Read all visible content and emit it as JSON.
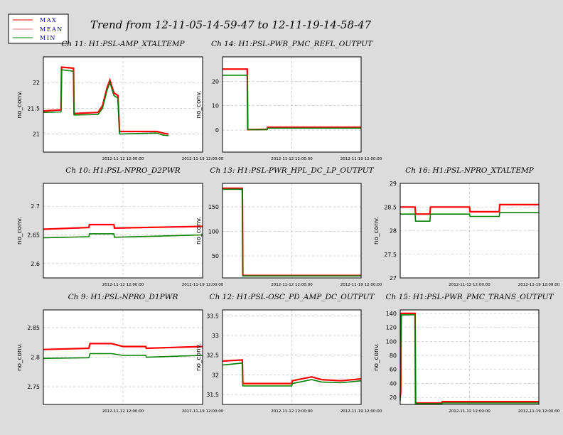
{
  "title": "Trend from 12-11-05-14-59-47 to 12-11-19-14-58-47",
  "legend": [
    {
      "label": "MAX",
      "color": "#e00000"
    },
    {
      "label": "MEAN",
      "color": "#e07070"
    },
    {
      "label": "MIN",
      "color": "#008000"
    }
  ],
  "colors": {
    "max": "#ff0000",
    "min": "#008000",
    "background": "#dcdcdc",
    "plot": "#ffffff",
    "grid": "#b4b4b4"
  },
  "chart_data": [
    {
      "type": "line",
      "title": "Ch 11: H1:PSL-AMP_XTALTEMP",
      "ylabel": "no_conv.",
      "ylim": [
        20.65,
        22.5
      ],
      "yticks": [
        21,
        21.5,
        22
      ],
      "xlim": [
        0,
        14
      ],
      "xticks": [
        "2012-11-12 12:00:00",
        "2012-11-19 12:00:00"
      ],
      "series": [
        {
          "name": "MAX",
          "points": [
            [
              0,
              21.45
            ],
            [
              1.55,
              21.47
            ],
            [
              1.6,
              22.3
            ],
            [
              2.65,
              22.28
            ],
            [
              2.7,
              21.4
            ],
            [
              4.8,
              21.42
            ],
            [
              5.2,
              21.55
            ],
            [
              5.6,
              21.9
            ],
            [
              5.85,
              22.05
            ],
            [
              6.2,
              21.8
            ],
            [
              6.55,
              21.75
            ],
            [
              6.7,
              21.05
            ],
            [
              10,
              21.05
            ],
            [
              10.5,
              21.02
            ],
            [
              11,
              21.0
            ]
          ]
        },
        {
          "name": "MIN",
          "points": [
            [
              0,
              21.42
            ],
            [
              1.55,
              21.43
            ],
            [
              1.6,
              22.25
            ],
            [
              2.65,
              22.22
            ],
            [
              2.7,
              21.37
            ],
            [
              4.8,
              21.38
            ],
            [
              5.2,
              21.5
            ],
            [
              5.6,
              21.85
            ],
            [
              5.85,
              22.0
            ],
            [
              6.2,
              21.75
            ],
            [
              6.55,
              21.7
            ],
            [
              6.7,
              21.0
            ],
            [
              10,
              21.02
            ],
            [
              10.5,
              20.98
            ],
            [
              11,
              20.97
            ]
          ]
        }
      ]
    },
    {
      "type": "line",
      "title": "Ch 14: H1:PSL-PWR_PMC_REFL_OUTPUT",
      "ylabel": "no_conv.",
      "ylim": [
        -9,
        30
      ],
      "yticks": [
        0,
        10,
        20
      ],
      "xlim": [
        0,
        14
      ],
      "xticks": [
        "2012-11-12 12:00:00",
        "2012-11-19 12:00:00"
      ],
      "series": [
        {
          "name": "MAX",
          "points": [
            [
              0,
              25
            ],
            [
              2.5,
              25
            ],
            [
              2.55,
              0.2
            ],
            [
              4.5,
              0.3
            ],
            [
              4.55,
              1.2
            ],
            [
              10,
              1.2
            ],
            [
              14,
              1.2
            ]
          ]
        },
        {
          "name": "MIN",
          "points": [
            [
              0,
              22.5
            ],
            [
              2.5,
              22.5
            ],
            [
              2.55,
              0.2
            ],
            [
              4.5,
              0.2
            ],
            [
              4.55,
              0.8
            ],
            [
              10,
              0.8
            ],
            [
              14,
              0.8
            ]
          ]
        }
      ]
    },
    {
      "type": "line",
      "title": "Ch 16: H1:PSL-NPRO_XTALTEMP",
      "ylabel": "no_conv.",
      "ylim": [
        27,
        29
      ],
      "yticks": [
        27,
        27.5,
        28,
        28.5,
        29
      ],
      "xlim": [
        0,
        14
      ],
      "xticks": [
        "2012-11-12 12:00:00",
        "2012-11-19 12:00:00"
      ],
      "series": [
        {
          "name": "MAX",
          "points": [
            [
              0,
              28.5
            ],
            [
              1.5,
              28.5
            ],
            [
              1.55,
              28.35
            ],
            [
              3,
              28.35
            ],
            [
              3.05,
              28.5
            ],
            [
              7,
              28.5
            ],
            [
              7.05,
              28.4
            ],
            [
              10,
              28.4
            ],
            [
              10.05,
              28.55
            ],
            [
              14,
              28.55
            ]
          ]
        },
        {
          "name": "MIN",
          "points": [
            [
              0,
              28.35
            ],
            [
              1.5,
              28.35
            ],
            [
              1.55,
              28.2
            ],
            [
              3,
              28.2
            ],
            [
              3.05,
              28.35
            ],
            [
              7,
              28.35
            ],
            [
              7.05,
              28.3
            ],
            [
              10,
              28.3
            ],
            [
              10.05,
              28.38
            ],
            [
              14,
              28.38
            ]
          ]
        }
      ]
    },
    {
      "type": "line",
      "title": "Ch 10: H1:PSL-NPRO_D2PWR",
      "ylabel": "no_conv.",
      "ylim": [
        2.575,
        2.74
      ],
      "yticks": [
        2.6,
        2.65,
        2.7
      ],
      "xlim": [
        0,
        14
      ],
      "xticks": [
        "2012-11-12 12:00:00",
        "2012-11-19 12:00:00"
      ],
      "series": [
        {
          "name": "MAX",
          "points": [
            [
              0,
              2.66
            ],
            [
              4,
              2.663
            ],
            [
              4.05,
              2.668
            ],
            [
              6.2,
              2.668
            ],
            [
              6.25,
              2.662
            ],
            [
              14,
              2.665
            ]
          ]
        },
        {
          "name": "MIN",
          "points": [
            [
              0,
              2.645
            ],
            [
              4,
              2.647
            ],
            [
              4.05,
              2.652
            ],
            [
              6.2,
              2.652
            ],
            [
              6.25,
              2.646
            ],
            [
              14,
              2.65
            ]
          ]
        }
      ]
    },
    {
      "type": "line",
      "title": "Ch 13: H1:PSL-PWR_HPL_DC_LP_OUTPUT",
      "ylabel": "no_conv.",
      "ylim": [
        5,
        198
      ],
      "yticks": [
        50,
        100,
        150
      ],
      "xlim": [
        0,
        14
      ],
      "xticks": [
        "2012-11-12 12:00:00",
        "2012-11-19 12:00:00"
      ],
      "series": [
        {
          "name": "MAX",
          "points": [
            [
              0,
              188
            ],
            [
              2,
              188
            ],
            [
              2.05,
              10
            ],
            [
              14,
              10
            ]
          ]
        },
        {
          "name": "MIN",
          "points": [
            [
              0,
              186
            ],
            [
              2,
              186
            ],
            [
              2.05,
              9
            ],
            [
              14,
              9
            ]
          ]
        }
      ]
    },
    {
      "type": "line",
      "title": "Ch 9: H1:PSL-NPRO_D1PWR",
      "ylabel": "no_conv.",
      "ylim": [
        2.72,
        2.88
      ],
      "yticks": [
        2.75,
        2.8,
        2.85
      ],
      "xlim": [
        0,
        14
      ],
      "xticks": [
        "2012-11-12 12:00:00",
        "2012-11-19 12:00:00"
      ],
      "series": [
        {
          "name": "MAX",
          "points": [
            [
              0,
              2.813
            ],
            [
              4,
              2.815
            ],
            [
              4.1,
              2.823
            ],
            [
              6,
              2.823
            ],
            [
              7,
              2.818
            ],
            [
              9,
              2.818
            ],
            [
              9.05,
              2.815
            ],
            [
              14,
              2.818
            ]
          ]
        },
        {
          "name": "MIN",
          "points": [
            [
              0,
              2.798
            ],
            [
              4,
              2.799
            ],
            [
              4.1,
              2.806
            ],
            [
              6,
              2.806
            ],
            [
              7,
              2.803
            ],
            [
              9,
              2.803
            ],
            [
              9.05,
              2.8
            ],
            [
              14,
              2.803
            ]
          ]
        }
      ]
    },
    {
      "type": "line",
      "title": "Ch 12: H1:PSL-OSC_PD_AMP_DC_OUTPUT",
      "ylabel": "no_conv.",
      "ylim": [
        31.25,
        33.65
      ],
      "yticks": [
        31.5,
        32,
        32.5,
        33,
        33.5
      ],
      "xlim": [
        0,
        14
      ],
      "xticks": [
        "2012-11-12 12:00:00",
        "2012-11-19 12:00:00"
      ],
      "series": [
        {
          "name": "MAX",
          "points": [
            [
              0,
              32.35
            ],
            [
              2,
              32.38
            ],
            [
              2.05,
              31.78
            ],
            [
              7,
              31.78
            ],
            [
              7.05,
              31.85
            ],
            [
              9,
              31.95
            ],
            [
              10,
              31.88
            ],
            [
              12,
              31.85
            ],
            [
              14,
              31.9
            ]
          ]
        },
        {
          "name": "MIN",
          "points": [
            [
              0,
              32.25
            ],
            [
              2,
              32.3
            ],
            [
              2.05,
              31.72
            ],
            [
              7,
              31.72
            ],
            [
              7.05,
              31.78
            ],
            [
              9,
              31.88
            ],
            [
              10,
              31.82
            ],
            [
              12,
              31.8
            ],
            [
              14,
              31.85
            ]
          ]
        }
      ]
    },
    {
      "type": "line",
      "title": "Ch 15: H1:PSL-PWR_PMC_TRANS_OUTPUT",
      "ylabel": "no_conv.",
      "ylim": [
        10,
        145
      ],
      "yticks": [
        20,
        40,
        60,
        80,
        100,
        120,
        140
      ],
      "xlim": [
        0,
        14
      ],
      "xticks": [
        "2012-11-12 12:00:00",
        "2012-11-19 12:00:00"
      ],
      "series": [
        {
          "name": "MAX",
          "points": [
            [
              0,
              20
            ],
            [
              0.05,
              28
            ],
            [
              0.1,
              140
            ],
            [
              1.5,
              140
            ],
            [
              1.55,
              12
            ],
            [
              4.2,
              12
            ],
            [
              4.25,
              14
            ],
            [
              14,
              14
            ]
          ]
        },
        {
          "name": "MIN",
          "points": [
            [
              0,
              15
            ],
            [
              0.1,
              138
            ],
            [
              1.5,
              138
            ],
            [
              1.55,
              11
            ],
            [
              4.2,
              11
            ],
            [
              4.25,
              12
            ],
            [
              14,
              12
            ]
          ]
        }
      ]
    }
  ]
}
